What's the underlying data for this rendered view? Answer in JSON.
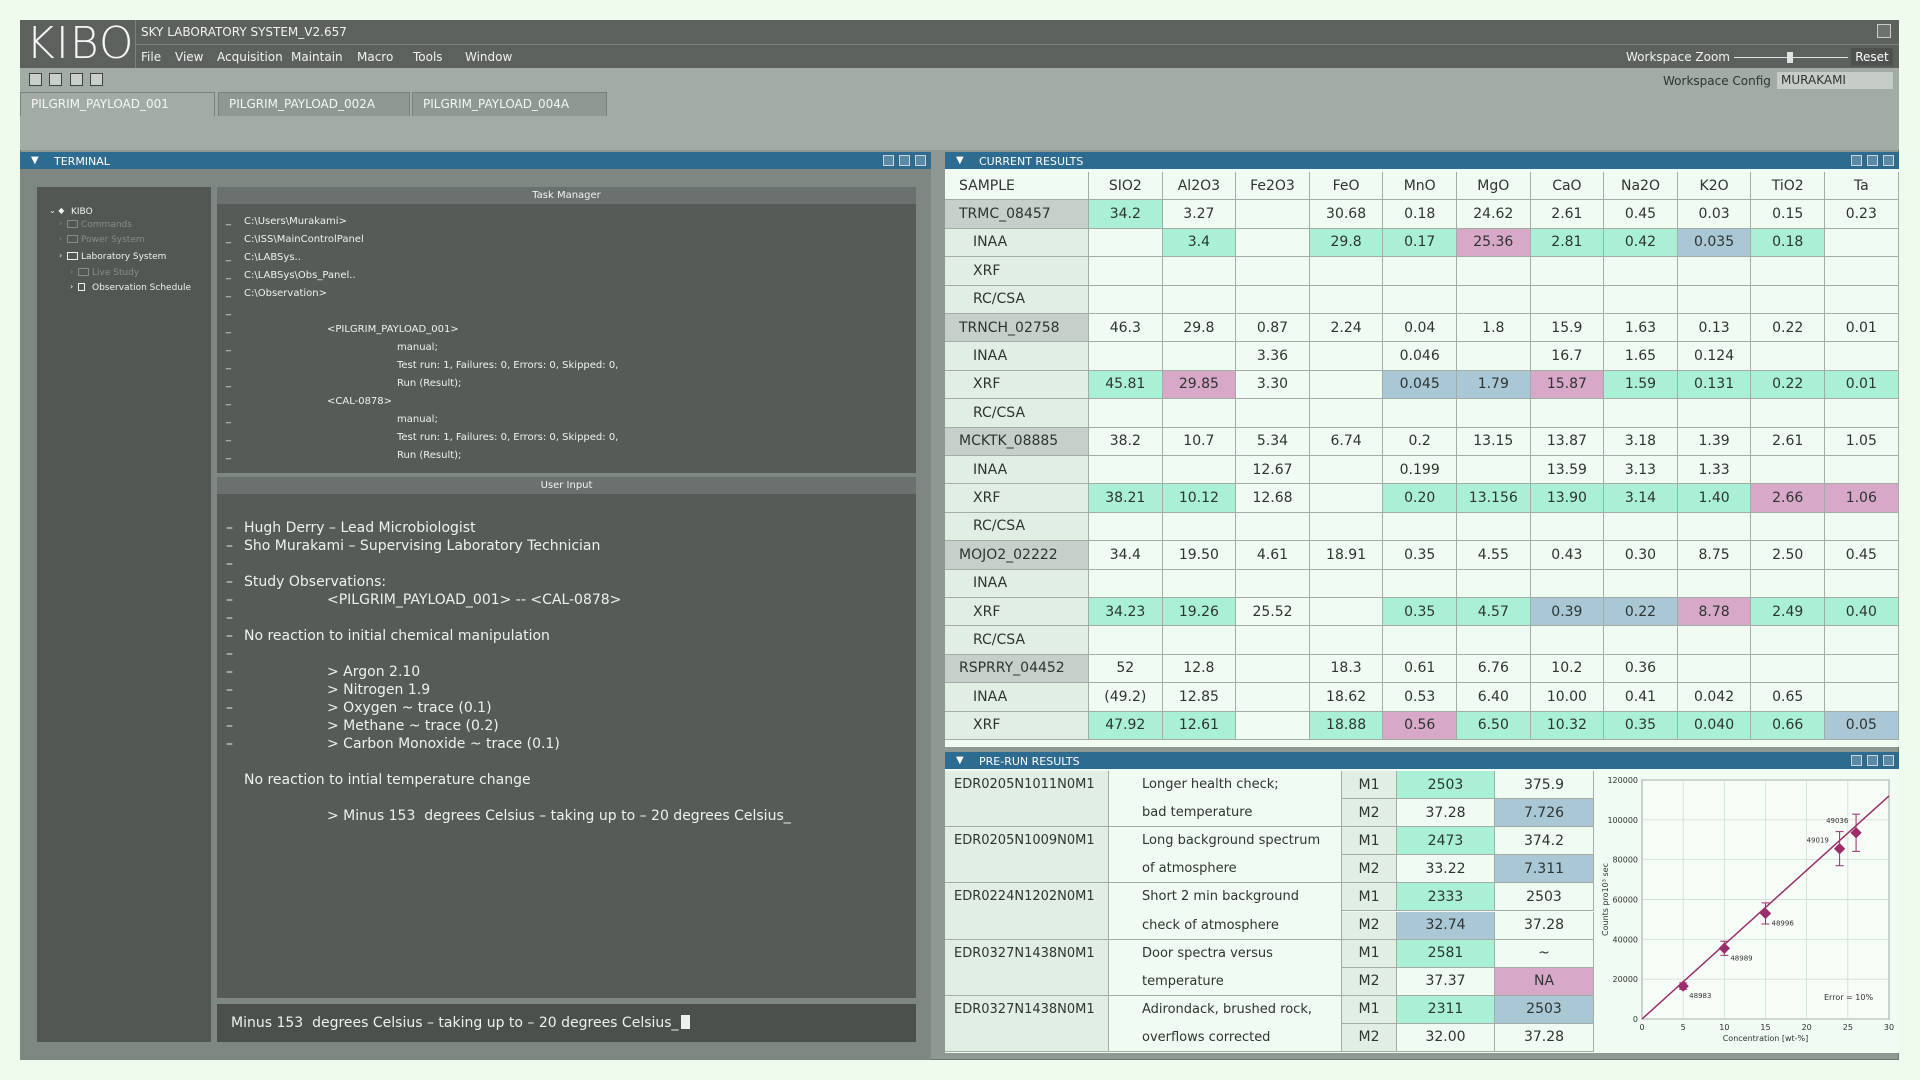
{
  "app": {
    "logo": "KIBO",
    "title": "SKY LABORATORY SYSTEM_V2.657",
    "menu": [
      "File",
      "View",
      "Acquisition",
      "Maintain",
      "Macro",
      "Tools",
      "Window"
    ],
    "zoom_label": "Workspace Zoom",
    "reset": "Reset",
    "config_label": "Workspace Config",
    "config_value": "MURAKAMI",
    "tabs": [
      "PILGRIM_PAYLOAD_001",
      "PILGRIM_PAYLOAD_002A",
      "PILGRIM_PAYLOAD_004A"
    ]
  },
  "terminal": {
    "title": "TERMINAL",
    "tree": [
      "KIBO",
      "Commands",
      "Power System",
      "Laboratory System",
      "Live Study",
      "Observation Schedule"
    ],
    "task_manager": {
      "title": "Task Manager",
      "lines": [
        "C:\\Users\\Murakami>",
        "C:\\ISS\\MainControlPanel",
        "C:\\LABSys..",
        "C:\\LABSys\\Obs_Panel..",
        "C:\\Observation>",
        null,
        "<PILGRIM_PAYLOAD_001>",
        "manual;",
        "Test run: 1, Failures: 0, Errors: 0, Skipped: 0,",
        "Run (Result);",
        "<CAL-0878>",
        "manual;",
        "Test run: 1, Failures: 0, Errors: 0, Skipped: 0,",
        "Run (Result);"
      ]
    },
    "user_input": {
      "title": "User Input",
      "lines": [
        "Hugh Derry – Lead Microbiologist",
        "Sho Murakami – Supervising Laboratory Technician",
        null,
        "Study Observations:",
        "<PILGRIM_PAYLOAD_001> -- <CAL-0878>",
        null,
        "No reaction to initial chemical manipulation",
        null,
        "> Argon 2.10",
        "> Nitrogen 1.9",
        "> Oxygen ~ trace (0.1)",
        "> Methane ~ trace (0.2)",
        "> Carbon Monoxide ~ trace (0.1)",
        null,
        "No reaction to intial temperature change",
        null,
        "> Minus 153  degrees Celsius – taking up to – 20 degrees Celsius_"
      ]
    },
    "command": "Minus 153  degrees Celsius – taking up to – 20 degrees Celsius_"
  },
  "current_results": {
    "title": "CURRENT RESULTS",
    "columns": [
      "SAMPLE",
      "SIO2",
      "Al2O3",
      "Fe2O3",
      "FeO",
      "MnO",
      "MgO",
      "CaO",
      "Na2O",
      "K2O",
      "TiO2",
      "Ta"
    ],
    "rows": [
      [
        "TRMC_08457",
        "34.2",
        "3.27",
        null,
        "30.68",
        "0.18",
        "24.62",
        "2.61",
        "0.45",
        "0.03",
        "0.15",
        "0.23"
      ],
      [
        "INAA",
        null,
        "3.4",
        null,
        "29.8",
        "0.17",
        "25.36",
        "2.81",
        "0.42",
        "0.035",
        "0.18",
        null
      ],
      [
        "XRF",
        null,
        null,
        null,
        null,
        null,
        null,
        null,
        null,
        null,
        null,
        null
      ],
      [
        "RC/CSA",
        null,
        null,
        null,
        null,
        null,
        null,
        null,
        null,
        null,
        null,
        null
      ],
      [
        "TRNCH_02758",
        "46.3",
        "29.8",
        "0.87",
        "2.24",
        "0.04",
        "1.8",
        "15.9",
        "1.63",
        "0.13",
        "0.22",
        "0.01"
      ],
      [
        "INAA",
        null,
        null,
        "3.36",
        null,
        "0.046",
        null,
        "16.7",
        "1.65",
        "0.124",
        null,
        null
      ],
      [
        "XRF",
        "45.81",
        "29.85",
        "3.30",
        null,
        "0.045",
        "1.79",
        "15.87",
        "1.59",
        "0.131",
        "0.22",
        "0.01"
      ],
      [
        "RC/CSA",
        null,
        null,
        null,
        null,
        null,
        null,
        null,
        null,
        null,
        null,
        null
      ],
      [
        "MCKTK_08885",
        "38.2",
        "10.7",
        "5.34",
        "6.74",
        "0.2",
        "13.15",
        "13.87",
        "3.18",
        "1.39",
        "2.61",
        "1.05"
      ],
      [
        "INAA",
        null,
        null,
        "12.67",
        null,
        "0.199",
        null,
        "13.59",
        "3.13",
        "1.33",
        null,
        null
      ],
      [
        "XRF",
        "38.21",
        "10.12",
        "12.68",
        null,
        "0.20",
        "13.156",
        "13.90",
        "3.14",
        "1.40",
        "2.66",
        "1.06"
      ],
      [
        "RC/CSA",
        null,
        null,
        null,
        null,
        null,
        null,
        null,
        null,
        null,
        null,
        null
      ],
      [
        "MOJO2_02222",
        "34.4",
        "19.50",
        "4.61",
        "18.91",
        "0.35",
        "4.55",
        "0.43",
        "0.30",
        "8.75",
        "2.50",
        "0.45"
      ],
      [
        "INAA",
        null,
        null,
        null,
        null,
        null,
        null,
        null,
        null,
        null,
        null,
        null
      ],
      [
        "XRF",
        "34.23",
        "19.26",
        "25.52",
        null,
        "0.35",
        "4.57",
        "0.39",
        "0.22",
        "8.78",
        "2.49",
        "0.40"
      ],
      [
        "RC/CSA",
        null,
        null,
        null,
        null,
        null,
        null,
        null,
        null,
        null,
        null,
        null
      ],
      [
        "RSPRRY_04452",
        "52",
        "12.8",
        null,
        "18.3",
        "0.61",
        "6.76",
        "10.2",
        "0.36",
        null,
        null,
        null
      ],
      [
        "INAA",
        "(49.2)",
        "12.85",
        null,
        "18.62",
        "0.53",
        "6.40",
        "10.00",
        "0.41",
        "0.042",
        "0.65",
        null
      ],
      [
        "XRF",
        "47.92",
        "12.61",
        null,
        "18.88",
        "0.56",
        "6.50",
        "10.32",
        "0.35",
        "0.040",
        "0.66",
        "0.05"
      ]
    ]
  },
  "pre_run_results": {
    "title": "PRE-RUN RESULTS",
    "rows": [
      {
        "id": "EDR0205N1011N0M1",
        "description": [
          "Longer health check;",
          "bad temperature"
        ],
        "runs": [
          [
            "M1",
            "2503",
            "375.9"
          ],
          [
            "M2",
            "37.28",
            "7.726"
          ]
        ]
      },
      {
        "id": "EDR0205N1009N0M1",
        "description": [
          "Long background spectrum",
          "of atmosphere"
        ],
        "runs": [
          [
            "M1",
            "2473",
            "374.2"
          ],
          [
            "M2",
            "33.22",
            "7.311"
          ]
        ]
      },
      {
        "id": "EDR0224N1202N0M1",
        "description": [
          "Short 2 min background",
          "check of atmosphere"
        ],
        "runs": [
          [
            "M1",
            "2333",
            "2503"
          ],
          [
            "M2",
            "32.74",
            "37.28"
          ]
        ]
      },
      {
        "id": "EDR0327N1438N0M1",
        "description": [
          "Door spectra versus",
          "temperature"
        ],
        "runs": [
          [
            "M1",
            "2581",
            "~"
          ],
          [
            "M2",
            "37.37",
            "NA"
          ]
        ]
      },
      {
        "id": "EDR0327N1438N0M1",
        "description": [
          "Adirondack, brushed rock,",
          "overflows corrected"
        ],
        "runs": [
          [
            "M1",
            "2311",
            "2503"
          ],
          [
            "M2",
            "32.00",
            "37.28"
          ]
        ]
      }
    ]
  },
  "chart_data": {
    "type": "scatter",
    "xlabel": "Concentration [wt-%]",
    "ylabel": "Counts pro10³ sec",
    "annotation": "Error = 10%",
    "x": [
      5,
      10,
      15,
      24,
      26
    ],
    "series": [
      {
        "color": "#9b2d6a",
        "values": [
          16500,
          35500,
          53000,
          85500,
          93500
        ],
        "errors": [
          1650,
          3550,
          5300,
          8550,
          9350
        ]
      }
    ],
    "point_labels": [
      "48983",
      "48989",
      "48996",
      "49019",
      "49036"
    ],
    "fit": {
      "x": [
        0,
        30
      ],
      "y": [
        0,
        112000
      ],
      "color": "#9b2d6a"
    },
    "xlim": [
      0,
      30
    ],
    "ylim": [
      0,
      120000
    ],
    "xticks": [
      0,
      5,
      10,
      15,
      20,
      25,
      30
    ],
    "yticks": [
      0,
      20000,
      40000,
      60000,
      80000,
      100000,
      120000
    ],
    "grid": true
  }
}
